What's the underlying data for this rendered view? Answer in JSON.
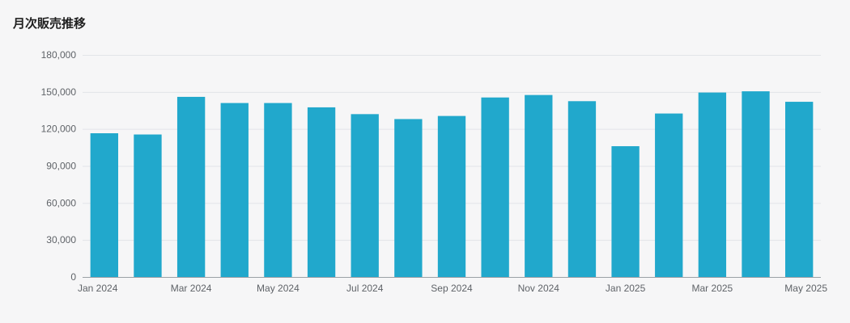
{
  "chart_data": {
    "type": "bar",
    "title": "月次販売推移",
    "xlabel": "",
    "ylabel": "",
    "ylim": [
      0,
      180000
    ],
    "yticks": [
      0,
      30000,
      60000,
      90000,
      120000,
      150000,
      180000
    ],
    "ytick_labels": [
      "0",
      "30,000",
      "60,000",
      "90,000",
      "120,000",
      "150,000",
      "180,000"
    ],
    "categories": [
      "2024-01",
      "2024-02",
      "2024-03",
      "2024-04",
      "2024-05",
      "2024-06",
      "2024-07",
      "2024-08",
      "2024-09",
      "2024-10",
      "2024-11",
      "2024-12",
      "2025-01",
      "2025-02",
      "2025-03",
      "2025-04",
      "2025-05"
    ],
    "xtick_labels": [
      "Jan 2024",
      "",
      "Mar 2024",
      "",
      "May 2024",
      "",
      "Jul 2024",
      "",
      "Sep 2024",
      "",
      "Nov 2024",
      "",
      "Jan 2025",
      "",
      "Mar 2025",
      "",
      "May 2025"
    ],
    "values": [
      116500,
      115500,
      146000,
      141000,
      141000,
      137500,
      132000,
      128000,
      130500,
      145500,
      147500,
      142500,
      106000,
      132500,
      149500,
      150500,
      142000
    ],
    "grid": true,
    "legend": "none",
    "bar_color": "#21a8cc"
  }
}
